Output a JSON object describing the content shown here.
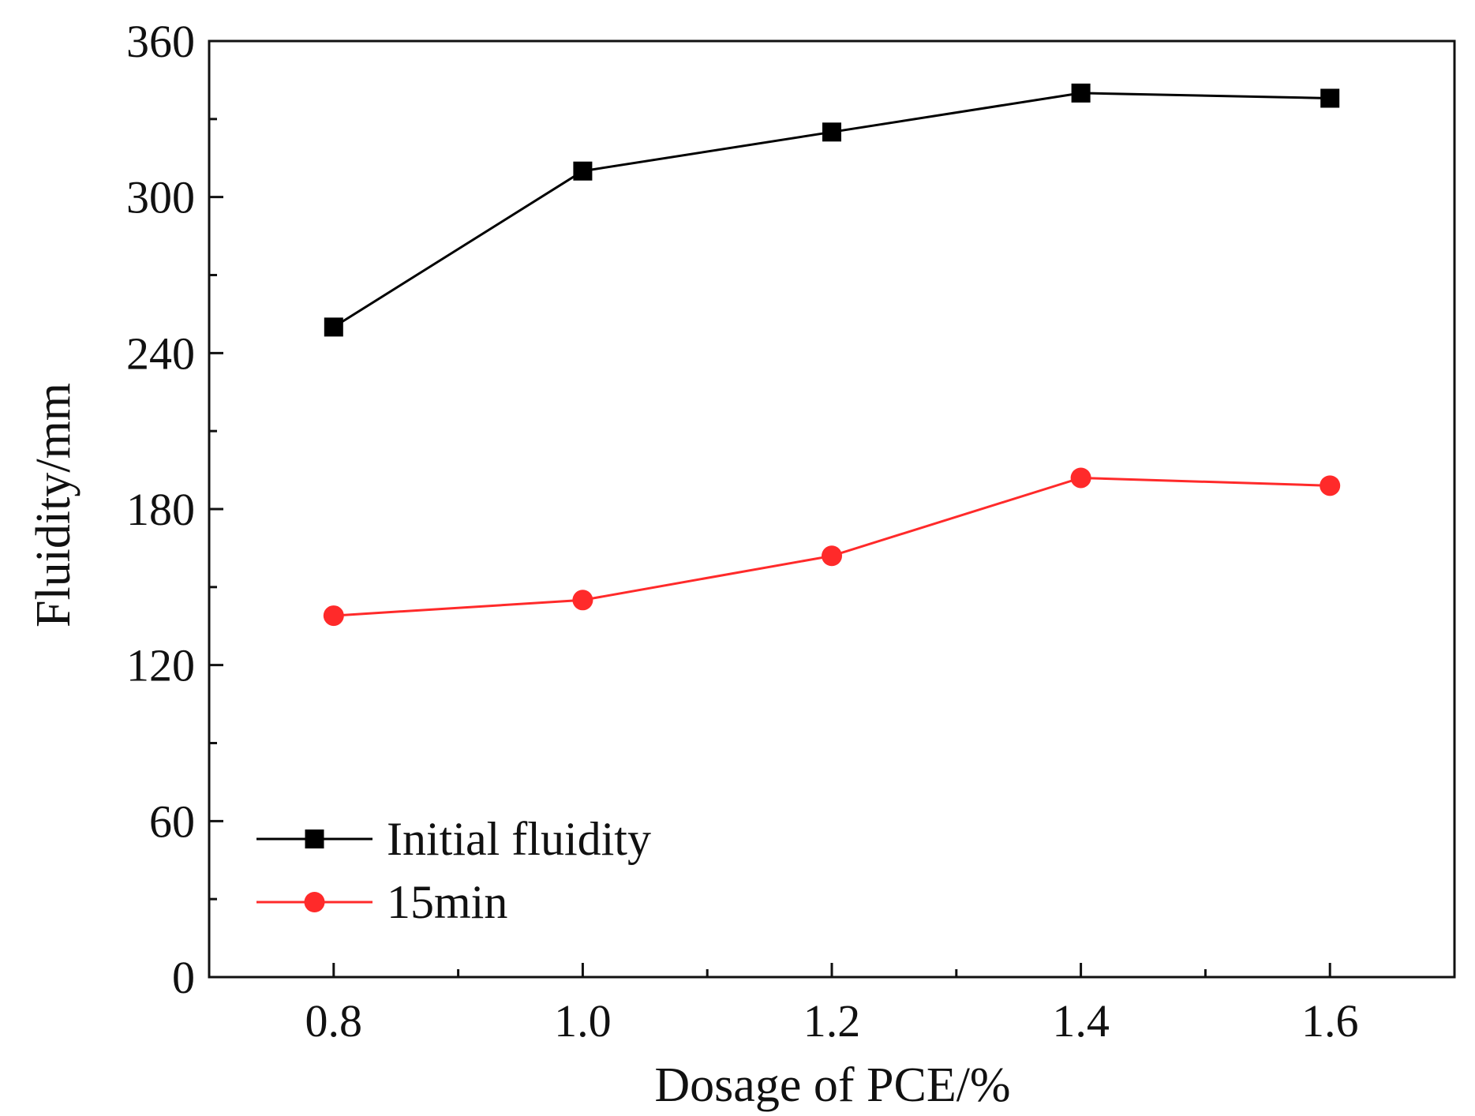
{
  "chart_data": {
    "type": "line",
    "title": "",
    "xlabel": "Dosage of PCE/%",
    "ylabel": "Fluidity/mm",
    "xlim": [
      0.7,
      1.7
    ],
    "ylim": [
      0,
      360
    ],
    "xticks": [
      0.8,
      1.0,
      1.2,
      1.4,
      1.6
    ],
    "xtick_labels": [
      "0.8",
      "1.0",
      "1.2",
      "1.4",
      "1.6"
    ],
    "yticks": [
      0,
      60,
      120,
      180,
      240,
      300,
      360
    ],
    "ytick_labels": [
      "0",
      "60",
      "120",
      "180",
      "240",
      "300",
      "360"
    ],
    "grid": false,
    "legend_position": "bottom-left",
    "x": [
      0.8,
      1.0,
      1.2,
      1.4,
      1.6
    ],
    "series": [
      {
        "name": "Initial fluidity",
        "values": [
          250,
          310,
          325,
          340,
          338
        ],
        "color": "#000000",
        "marker": "square"
      },
      {
        "name": "15min",
        "values": [
          139,
          145,
          162,
          192,
          189
        ],
        "color": "#ff2a2a",
        "marker": "circle"
      }
    ]
  }
}
